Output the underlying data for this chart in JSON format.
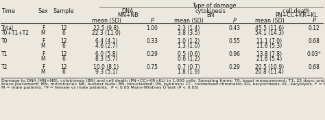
{
  "bg_color": "#ede8df",
  "text_color": "#1a1a1a",
  "hfs": 5.8,
  "fs": 5.5,
  "ffs": 4.5,
  "title": "Type of damage",
  "h1_labels": [
    "DNA\nMN+NB",
    "cytokinesis\nBN",
    "cell death\nPN+CC+KR+KL"
  ],
  "h2_labels": [
    "mean (SD)",
    "P",
    "mean (SD)",
    "P",
    "mean (SD)",
    "P"
  ],
  "col_labels": [
    "Time",
    "Sex",
    "Sample"
  ],
  "rows": [
    {
      "time": [
        "Total",
        "T0+T1+T2"
      ],
      "sex": [
        "F",
        "M"
      ],
      "sample": [
        "12",
        "6"
      ],
      "dna": [
        "22.5 (9.8)",
        "22.3 (11.0)"
      ],
      "dna_p": "1.00",
      "cyto": [
        "2.3 (1.4)",
        "3.8 (3.5)"
      ],
      "cyto_p": "0.43",
      "cd": [
        "45.5 (11.6)",
        "54.1 (14.3)"
      ],
      "cd_p": "0.12"
    },
    {
      "time": [
        "T0",
        ""
      ],
      "sex": [
        "F",
        "M"
      ],
      "sample": [
        "12",
        "6"
      ],
      "dna": [
        "6.4 (4.1)",
        "4.6 (2.7)"
      ],
      "dna_p": "0.33",
      "cyto": [
        "1.0 (1.2)",
        "1.3 (1.0)"
      ],
      "cyto_p": "0.55",
      "cd": [
        "11.1 (7.0)",
        "11.6 (5.3)"
      ],
      "cd_p": "0.68"
    },
    {
      "time": [
        "T1",
        ""
      ],
      "sex": [
        "F",
        "M"
      ],
      "sample": [
        "12",
        "6"
      ],
      "dna": [
        "6.0 (5.8)",
        "8.3 (5.7)"
      ],
      "dna_p": "0.29",
      "cyto": [
        "0.5 (0.6)",
        "0.6 (1.2)"
      ],
      "cyto_p": "0.96",
      "cd": [
        "13.8 (7.8)",
        "21.6 (5.4)"
      ],
      "cd_p": "0.03*"
    },
    {
      "time": [
        "T2",
        ""
      ],
      "sex": [
        "F",
        "M"
      ],
      "sample": [
        "12",
        "6"
      ],
      "dna": [
        "10.0 (8.1)",
        "9.3 (5.1)"
      ],
      "dna_p": "0.75",
      "cyto": [
        "0.7 (0.7)",
        "1.8 (1.9)"
      ],
      "cyto_p": "0.29",
      "cd": [
        "20.5 (10.9)",
        "20.8 (11.4)"
      ],
      "cd_p": "0.68"
    }
  ],
  "footnote_lines": [
    "Damage to DNA (MN+NB), cytokinesis (BN) and cell death (PN+CC+KR+KL) in 1,000 cells. Sampling times: T0, basal measurement; T1, 25 days; and T2, 90 days after",
    "brace placement; MN, micronuclei; NB, nuclear buds; BN, binucleated; PN, pyknosis; CC, condensed chromatin; KR, karyorrhexis, KL, karyolysis. F = female patients;",
    "M = male patients. *P = female vs male patients.  P < 0.05 Mann-Whitney U test (P < 0.05)"
  ]
}
